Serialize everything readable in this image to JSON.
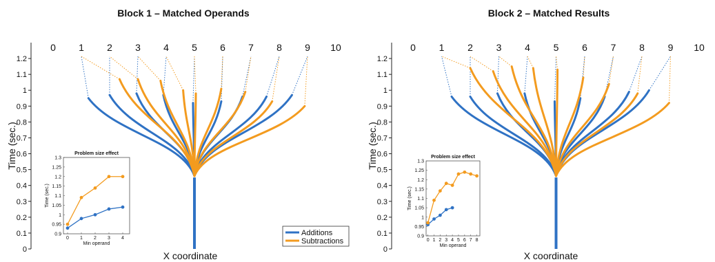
{
  "colors": {
    "additions": "#2f72c4",
    "subtractions": "#f39b1f"
  },
  "chart_data": [
    {
      "type": "line",
      "title": "Block 1 – Matched Operands",
      "xlabel": "X coordinate",
      "ylabel": "Time (sec.)",
      "ylim": [
        0,
        1.3
      ],
      "yticks": [
        "0",
        "0.1",
        "0.2",
        "0.3",
        "0.4",
        "0.5",
        "0.6",
        "0.7",
        "0.8",
        "0.9",
        "1",
        "1.1",
        "1.2"
      ],
      "xlim": [
        0,
        10
      ],
      "top_numbers": [
        "0",
        "1",
        "2",
        "3",
        "4",
        "5",
        "6",
        "7",
        "8",
        "9",
        "10"
      ],
      "stem": {
        "x": 5,
        "y": [
          0,
          0.45
        ]
      },
      "legend": {
        "placement": "bottom-right",
        "items": [
          "Additions",
          "Subtractions"
        ]
      },
      "series": [
        {
          "name": "Additions",
          "trajectories": [
            {
              "target": 1,
              "end_x": 1.25,
              "end_t": 0.95
            },
            {
              "target": 2,
              "end_x": 2.0,
              "end_t": 0.97
            },
            {
              "target": 3,
              "end_x": 2.95,
              "end_t": 0.98
            },
            {
              "target": 4,
              "end_x": 3.9,
              "end_t": 0.97
            },
            {
              "target": 5,
              "end_x": 4.95,
              "end_t": 0.92
            },
            {
              "target": 6,
              "end_x": 5.95,
              "end_t": 0.93
            },
            {
              "target": 7,
              "end_x": 6.7,
              "end_t": 0.96
            },
            {
              "target": 8,
              "end_x": 7.55,
              "end_t": 0.96
            },
            {
              "target": 9,
              "end_x": 8.45,
              "end_t": 0.97
            }
          ]
        },
        {
          "name": "Subtractions",
          "trajectories": [
            {
              "target": 1,
              "end_x": 2.35,
              "end_t": 1.07
            },
            {
              "target": 2,
              "end_x": 3.0,
              "end_t": 1.07
            },
            {
              "target": 3,
              "end_x": 3.8,
              "end_t": 1.06
            },
            {
              "target": 4,
              "end_x": 4.6,
              "end_t": 1.0
            },
            {
              "target": 5,
              "end_x": 5.05,
              "end_t": 0.98
            },
            {
              "target": 6,
              "end_x": 5.95,
              "end_t": 1.01
            },
            {
              "target": 7,
              "end_x": 6.8,
              "end_t": 0.99
            },
            {
              "target": 8,
              "end_x": 7.75,
              "end_t": 0.93
            },
            {
              "target": 9,
              "end_x": 8.9,
              "end_t": 0.9
            }
          ]
        }
      ],
      "inset": {
        "title": "Problem size effect",
        "xlabel": "Min operand",
        "ylabel": "Time (sec.)",
        "xlim": [
          -0.3,
          4.5
        ],
        "xticks": [
          "0",
          "1",
          "2",
          "3",
          "4"
        ],
        "ylim": [
          0.9,
          1.3
        ],
        "yticks": [
          "0.9",
          "0.95",
          "1",
          "1.05",
          "1.1",
          "1.15",
          "1.2",
          "1.25",
          "1.3"
        ],
        "series": [
          {
            "name": "Additions",
            "x": [
              0,
              1,
              2,
              3,
              4
            ],
            "values": [
              0.93,
              0.98,
              1.0,
              1.03,
              1.04
            ]
          },
          {
            "name": "Subtractions",
            "x": [
              0,
              1,
              2,
              3,
              4
            ],
            "values": [
              0.95,
              1.09,
              1.14,
              1.2,
              1.2
            ]
          }
        ]
      }
    },
    {
      "type": "line",
      "title": "Block 2 – Matched Results",
      "xlabel": "X coordinate",
      "ylabel": "Time (sec.)",
      "ylim": [
        0,
        1.3
      ],
      "yticks": [
        "0",
        "0.1",
        "0.2",
        "0.3",
        "0.4",
        "0.5",
        "0.6",
        "0.7",
        "0.8",
        "0.9",
        "1",
        "1.1",
        "1.2"
      ],
      "xlim": [
        0,
        10
      ],
      "top_numbers": [
        "0",
        "1",
        "2",
        "3",
        "4",
        "5",
        "6",
        "7",
        "8",
        "9",
        "10"
      ],
      "stem": {
        "x": 5,
        "y": [
          0,
          0.45
        ]
      },
      "series": [
        {
          "name": "Additions",
          "trajectories": [
            {
              "target": 1,
              "end_x": 1.35,
              "end_t": 0.96
            },
            {
              "target": 2,
              "end_x": 2.0,
              "end_t": 0.96
            },
            {
              "target": 3,
              "end_x": 2.95,
              "end_t": 0.98
            },
            {
              "target": 4,
              "end_x": 3.9,
              "end_t": 0.98
            },
            {
              "target": 5,
              "end_x": 4.95,
              "end_t": 0.93
            },
            {
              "target": 6,
              "end_x": 5.85,
              "end_t": 0.95
            },
            {
              "target": 7,
              "end_x": 6.7,
              "end_t": 0.96
            },
            {
              "target": 8,
              "end_x": 7.55,
              "end_t": 0.99
            },
            {
              "target": 9,
              "end_x": 8.25,
              "end_t": 1.0
            }
          ]
        },
        {
          "name": "Subtractions",
          "trajectories": [
            {
              "target": 1,
              "end_x": 2.0,
              "end_t": 1.14
            },
            {
              "target": 2,
              "end_x": 2.8,
              "end_t": 1.12
            },
            {
              "target": 3,
              "end_x": 3.45,
              "end_t": 1.15
            },
            {
              "target": 4,
              "end_x": 4.2,
              "end_t": 1.14
            },
            {
              "target": 5,
              "end_x": 5.05,
              "end_t": 1.13
            },
            {
              "target": 6,
              "end_x": 5.95,
              "end_t": 1.08
            },
            {
              "target": 7,
              "end_x": 6.85,
              "end_t": 1.04
            },
            {
              "target": 8,
              "end_x": 7.85,
              "end_t": 0.98
            },
            {
              "target": 9,
              "end_x": 8.95,
              "end_t": 0.92
            }
          ]
        }
      ],
      "inset": {
        "title": "Problem size effect",
        "xlabel": "Min operand",
        "ylabel": "Time (sec.)",
        "xlim": [
          -0.3,
          8.5
        ],
        "xticks": [
          "0",
          "1",
          "2",
          "3",
          "4",
          "5",
          "6",
          "7",
          "8"
        ],
        "ylim": [
          0.9,
          1.3
        ],
        "yticks": [
          "0.9",
          "0.95",
          "1",
          "1.05",
          "1.1",
          "1.15",
          "1.2",
          "1.25",
          "1.3"
        ],
        "series": [
          {
            "name": "Additions",
            "x": [
              0,
              1,
              2,
              3,
              4
            ],
            "values": [
              0.96,
              0.99,
              1.01,
              1.04,
              1.05
            ]
          },
          {
            "name": "Subtractions",
            "x": [
              0,
              1,
              2,
              3,
              4,
              5,
              6,
              7,
              8
            ],
            "values": [
              0.97,
              1.09,
              1.14,
              1.18,
              1.17,
              1.23,
              1.24,
              1.23,
              1.22
            ]
          }
        ]
      }
    }
  ]
}
